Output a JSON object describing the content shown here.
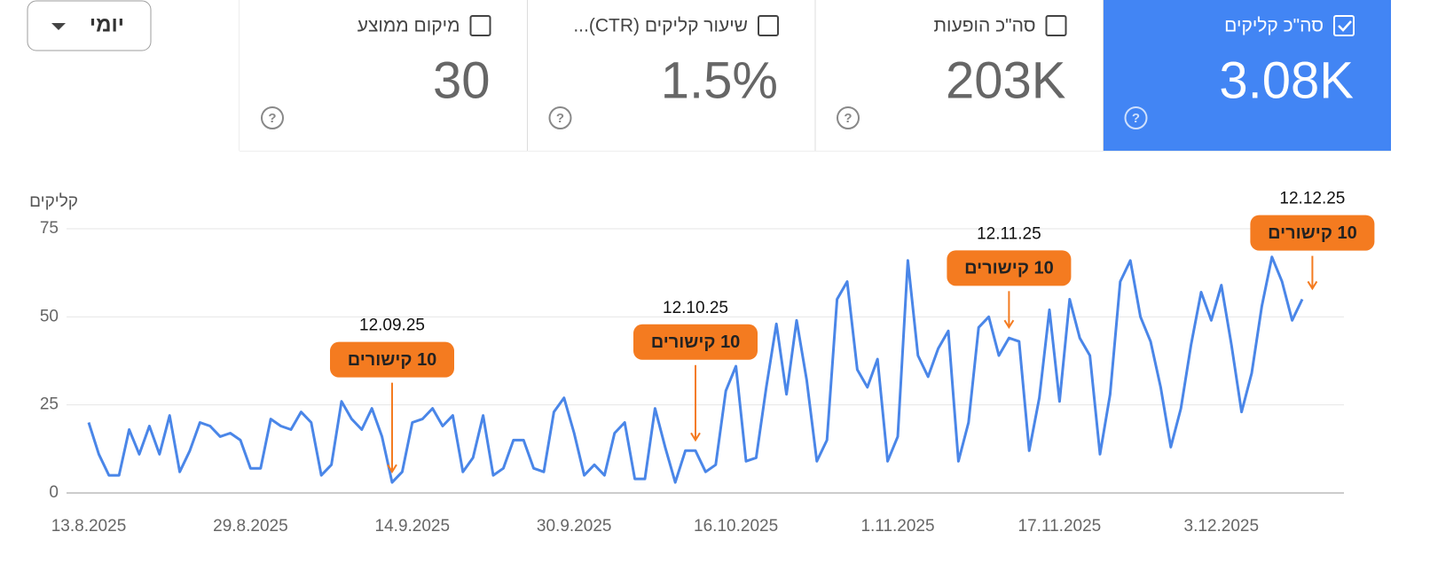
{
  "toolbar": {
    "period": "יומי"
  },
  "cards": [
    {
      "title": "סה\"כ קליקים",
      "value": "3.08K",
      "checked": true
    },
    {
      "title": "סה\"כ הופעות",
      "value": "203K",
      "checked": false
    },
    {
      "title": "שיעור קליקים (CTR)...",
      "value": "1.5%",
      "checked": false
    },
    {
      "title": "מיקום ממוצע",
      "value": "30",
      "checked": false
    }
  ],
  "chart_data": {
    "type": "line",
    "y_label": "קליקים",
    "color": "#4a86e8",
    "grid": true,
    "ylim": [
      0,
      75
    ],
    "yticks": [
      0,
      25,
      50,
      75
    ],
    "categories": [
      "13.8.2025",
      null,
      null,
      null,
      null,
      null,
      null,
      null,
      null,
      null,
      null,
      null,
      null,
      null,
      null,
      null,
      "29.8.2025",
      null,
      null,
      null,
      null,
      null,
      null,
      null,
      null,
      null,
      null,
      null,
      null,
      null,
      null,
      null,
      "14.9.2025",
      null,
      null,
      null,
      null,
      null,
      null,
      null,
      null,
      null,
      null,
      null,
      null,
      null,
      null,
      null,
      "30.9.2025",
      null,
      null,
      null,
      null,
      null,
      null,
      null,
      null,
      null,
      null,
      null,
      null,
      null,
      null,
      null,
      "16.10.2025",
      null,
      null,
      null,
      null,
      null,
      null,
      null,
      null,
      null,
      null,
      null,
      null,
      null,
      null,
      null,
      "1.11.2025",
      null,
      null,
      null,
      null,
      null,
      null,
      null,
      null,
      null,
      null,
      null,
      null,
      null,
      null,
      null,
      "17.11.2025",
      null,
      null,
      null,
      null,
      null,
      null,
      null,
      null,
      null,
      null,
      null,
      null,
      null,
      null,
      null,
      "3.12.2025",
      null,
      null,
      null,
      null,
      null,
      null,
      null,
      null
    ],
    "values": [
      20,
      11,
      5,
      5,
      18,
      11,
      19,
      11,
      22,
      6,
      12,
      20,
      19,
      16,
      17,
      15,
      7,
      7,
      21,
      19,
      18,
      23,
      20,
      5,
      8,
      26,
      21,
      18,
      24,
      16,
      3,
      6,
      20,
      21,
      24,
      19,
      22,
      6,
      10,
      22,
      5,
      7,
      15,
      15,
      7,
      6,
      23,
      27,
      17,
      5,
      8,
      5,
      17,
      20,
      4,
      4,
      24,
      13,
      3,
      12,
      12,
      6,
      8,
      29,
      36,
      9,
      10,
      30,
      48,
      28,
      49,
      32,
      9,
      15,
      55,
      60,
      35,
      30,
      38,
      9,
      16,
      66,
      39,
      33,
      41,
      46,
      9,
      20,
      47,
      50,
      39,
      44,
      43,
      12,
      27,
      52,
      26,
      55,
      44,
      39,
      11,
      28,
      60,
      66,
      50,
      43,
      30,
      13,
      24,
      42,
      57,
      49,
      59,
      42,
      23,
      34,
      53,
      67,
      60,
      49,
      55
    ],
    "annotation_color": "#f47b20",
    "annotations": [
      {
        "date": "12.09.25",
        "label": "10 קישורים"
      },
      {
        "date": "12.10.25",
        "label": "10 קישורים"
      },
      {
        "date": "12.11.25",
        "label": "10 קישורים"
      },
      {
        "date": "12.12.25",
        "label": "10 קישורים"
      }
    ]
  }
}
